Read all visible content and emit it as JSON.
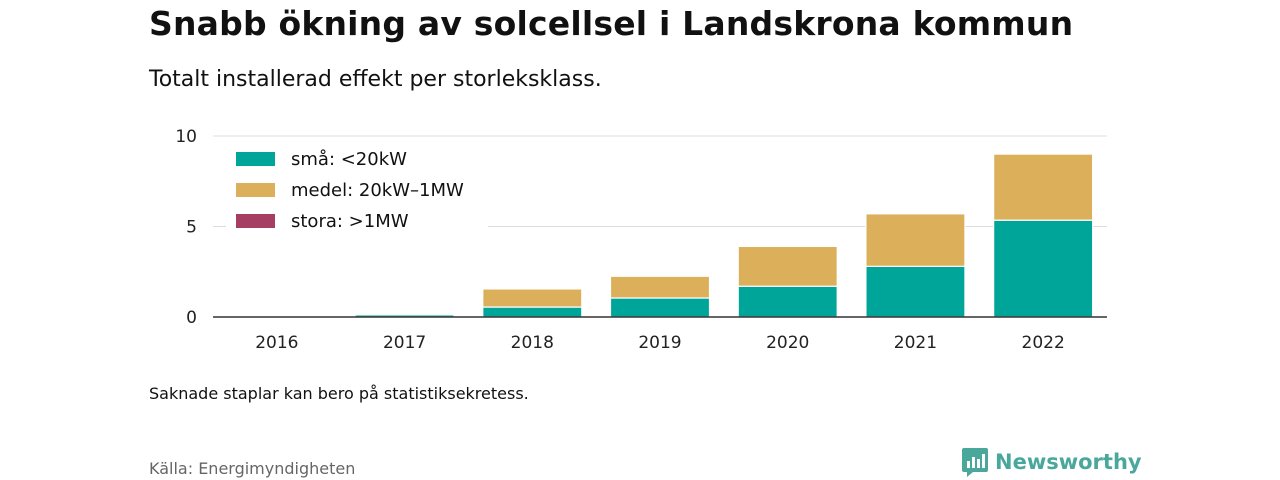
{
  "header": {
    "title": "Snabb ökning av solcellsel i Landskrona kommun",
    "subtitle": "Totalt installerad effekt per storleksklass."
  },
  "footer": {
    "note": "Saknade staplar kan bero på statistiksekretess.",
    "source": "Källa: Energimyndigheten",
    "brand": "Newsworthy"
  },
  "colors": {
    "small": "#00a599",
    "medium": "#dcaf5a",
    "large": "#a63d63",
    "brand": "#4aa79c"
  },
  "chart_data": {
    "type": "bar",
    "stacked": true,
    "categories": [
      "2016",
      "2017",
      "2018",
      "2019",
      "2020",
      "2021",
      "2022"
    ],
    "series": [
      {
        "name": "små: <20kW",
        "color": "#00a599",
        "values": [
          0.02,
          0.12,
          0.55,
          1.05,
          1.7,
          2.8,
          5.35
        ]
      },
      {
        "name": "medel: 20kW–1MW",
        "color": "#dcaf5a",
        "values": [
          0,
          0.02,
          1.0,
          1.2,
          2.2,
          2.9,
          3.65
        ]
      },
      {
        "name": "stora: >1MW",
        "color": "#a63d63",
        "values": [
          0,
          0,
          0,
          0,
          0,
          0,
          0
        ]
      }
    ],
    "yticks": [
      0,
      5,
      10
    ],
    "ylim": [
      0,
      10
    ],
    "grid": true,
    "legend_position": "top-left"
  }
}
